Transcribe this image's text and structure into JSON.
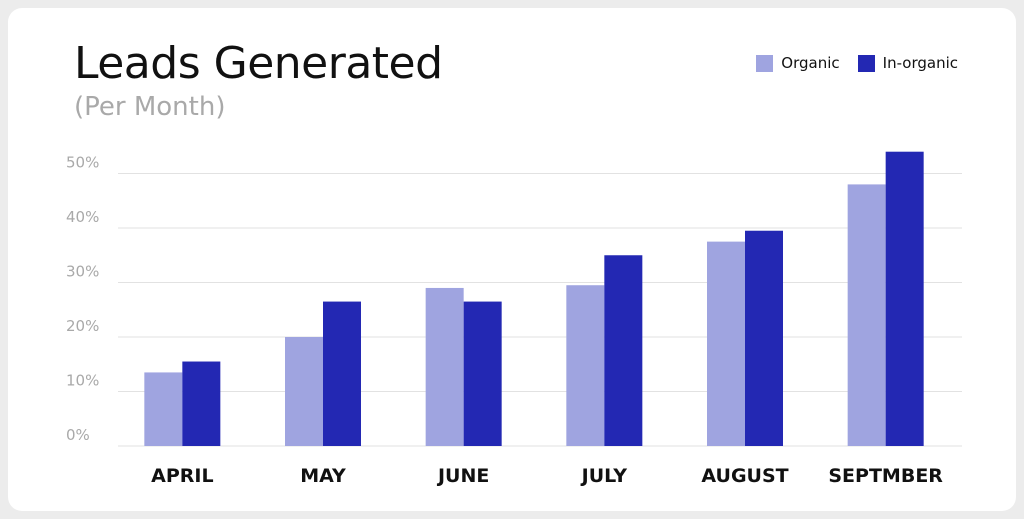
{
  "chart_data": {
    "type": "bar",
    "title": "Leads Generated",
    "subtitle": "(Per Month)",
    "categories": [
      "APRIL",
      "MAY",
      "JUNE",
      "JULY",
      "AUGUST",
      "SEPTMBER"
    ],
    "series": [
      {
        "name": "Organic",
        "color": "#9fa4e0",
        "values": [
          13.5,
          20,
          29,
          29.5,
          37.5,
          48
        ]
      },
      {
        "name": "In-organic",
        "color": "#2328b3",
        "values": [
          15.5,
          26.5,
          26.5,
          35,
          39.5,
          54
        ]
      }
    ],
    "y_ticks": [
      "0%",
      "10%",
      "20%",
      "30%",
      "40%",
      "50%"
    ],
    "ylim": [
      0,
      55
    ],
    "grid": true,
    "legend_position": "top-right"
  }
}
